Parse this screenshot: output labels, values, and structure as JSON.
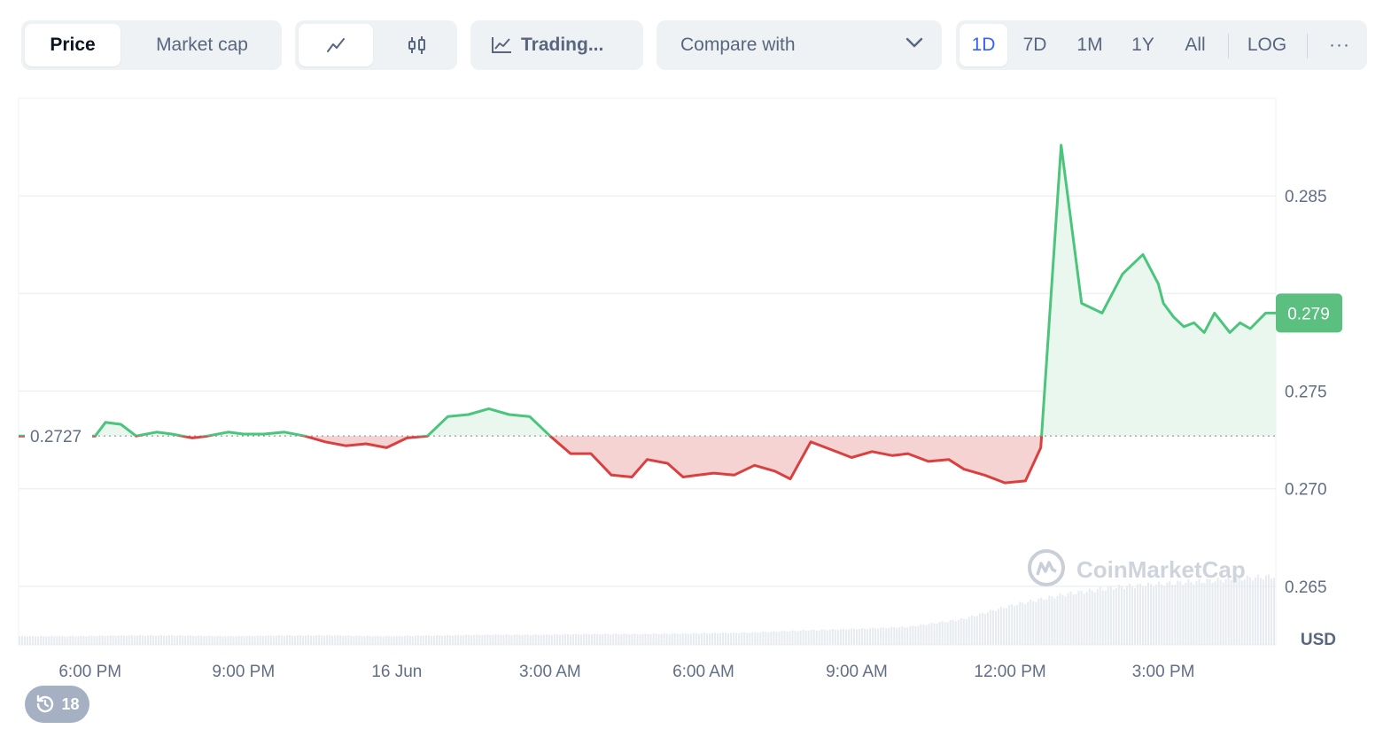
{
  "toolbar": {
    "price_tab": "Price",
    "market_cap_tab": "Market cap",
    "line_icon": "line-chart-icon",
    "candle_icon": "candlestick-icon",
    "trading_label": "Trading...",
    "compare_label": "Compare with",
    "ranges": [
      "1D",
      "7D",
      "1M",
      "1Y",
      "All"
    ],
    "active_range": "1D",
    "log_label": "LOG",
    "more_label": "···"
  },
  "colors": {
    "up": "#16c784",
    "down": "#ea3943",
    "line_up": "#4cc57c",
    "line_down": "#d94040",
    "fill_up": "#e9f7ef",
    "fill_down": "#f6d3d3",
    "badge": "#5bbf80"
  },
  "chart_data": {
    "type": "area",
    "baseline_label": "0.2727",
    "current_price_label": "0.279",
    "currency": "USD",
    "y_ticks": [
      "0.285",
      "0.275",
      "0.270",
      "0.265"
    ],
    "y_tick_values": [
      0.285,
      0.275,
      0.27,
      0.265
    ],
    "ylim": [
      0.262,
      0.29
    ],
    "x_ticks": [
      "6:00 PM",
      "9:00 PM",
      "16 Jun",
      "3:00 AM",
      "6:00 AM",
      "9:00 AM",
      "12:00 PM",
      "3:00 PM"
    ],
    "x_hours": [
      18,
      21,
      24,
      27,
      30,
      33,
      36,
      39
    ],
    "xlim_hours": [
      16.6,
      41.2
    ],
    "baseline": 0.2727,
    "x": [
      16.6,
      18.1,
      18.3,
      18.6,
      18.9,
      19.3,
      19.6,
      20.0,
      20.3,
      20.7,
      21.0,
      21.4,
      21.8,
      22.2,
      22.6,
      23.0,
      23.4,
      23.8,
      24.2,
      24.6,
      25.0,
      25.4,
      25.8,
      26.2,
      26.6,
      27.0,
      27.4,
      27.8,
      28.2,
      28.6,
      28.9,
      29.3,
      29.6,
      29.9,
      30.2,
      30.6,
      31.0,
      31.4,
      31.7,
      32.1,
      32.5,
      32.9,
      33.3,
      33.7,
      34.0,
      34.4,
      34.8,
      35.1,
      35.5,
      35.9,
      36.3,
      36.6,
      37.0,
      37.4,
      37.8,
      38.2,
      38.6,
      38.9,
      39.0,
      39.2,
      39.4,
      39.6,
      39.8,
      40.0,
      40.3,
      40.5,
      40.7,
      41.0,
      41.2
    ],
    "y": [
      0.2727,
      0.2727,
      0.2734,
      0.2733,
      0.2727,
      0.2729,
      0.2728,
      0.2726,
      0.2727,
      0.2729,
      0.2728,
      0.2728,
      0.2729,
      0.2727,
      0.2724,
      0.2722,
      0.2723,
      0.2721,
      0.2726,
      0.2727,
      0.2737,
      0.2738,
      0.2741,
      0.2738,
      0.2737,
      0.2727,
      0.2718,
      0.2718,
      0.2707,
      0.2706,
      0.2715,
      0.2713,
      0.2706,
      0.2707,
      0.2708,
      0.2707,
      0.2712,
      0.2709,
      0.2705,
      0.2724,
      0.272,
      0.2716,
      0.2719,
      0.2717,
      0.2718,
      0.2714,
      0.2715,
      0.271,
      0.2707,
      0.2703,
      0.2704,
      0.2721,
      0.2876,
      0.2795,
      0.279,
      0.281,
      0.282,
      0.2805,
      0.2795,
      0.2788,
      0.2783,
      0.2785,
      0.278,
      0.279,
      0.278,
      0.2785,
      0.2782,
      0.279,
      0.279
    ],
    "volume_heights": [
      0.12,
      0.12,
      0.13,
      0.13,
      0.12,
      0.13,
      0.13,
      0.12,
      0.13,
      0.14,
      0.14,
      0.15,
      0.15,
      0.16,
      0.17,
      0.2,
      0.22,
      0.25,
      0.35,
      0.55,
      0.7,
      0.8,
      0.85,
      0.9,
      0.95
    ]
  },
  "watermark": "CoinMarketCap",
  "history": {
    "count": "18"
  }
}
